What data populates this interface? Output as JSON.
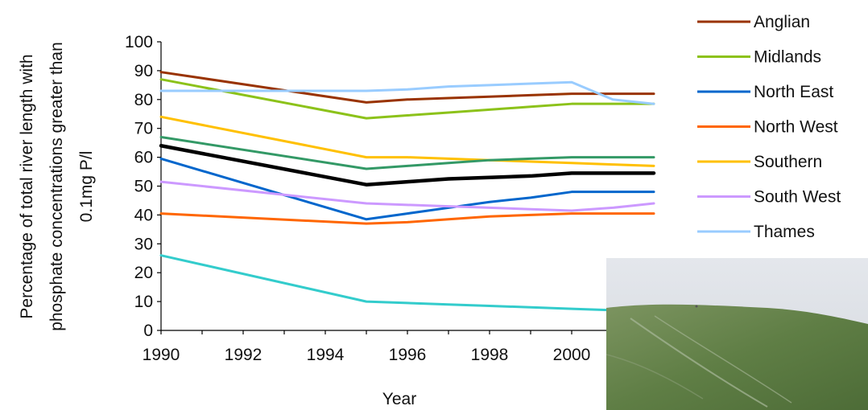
{
  "chart_data": {
    "type": "line",
    "xlabel": "Year",
    "ylabel": "Percentage of total river length with phosphate concentrations greater than 0.1mg P/l",
    "ylabel_lines": [
      "Percentage of total river length with",
      "phosphate concentrations greater than",
      "0.1mg P/l"
    ],
    "ylim": [
      0,
      100
    ],
    "xlim": [
      1990,
      2002
    ],
    "y_ticks": [
      "0",
      "10",
      "20",
      "30",
      "40",
      "50",
      "60",
      "70",
      "80",
      "90",
      "100"
    ],
    "x_ticks": [
      "1990",
      "1992",
      "1994",
      "1996",
      "1998",
      "2000"
    ],
    "x": [
      1990,
      1995,
      1996,
      1997,
      1998,
      1999,
      2000,
      2001,
      2002
    ],
    "series": [
      {
        "name": "Anglian",
        "color": "#993300",
        "values": [
          89.5,
          79,
          80,
          80.5,
          81,
          81.5,
          82,
          82,
          82
        ]
      },
      {
        "name": "Midlands",
        "color": "#8CC21A",
        "values": [
          87,
          73.5,
          74.5,
          75.5,
          76.5,
          77.5,
          78.5,
          78.5,
          78.5
        ]
      },
      {
        "name": "North East",
        "color": "#0066CC",
        "values": [
          59.5,
          38.5,
          40.5,
          42.5,
          44.5,
          46,
          48,
          48,
          48
        ]
      },
      {
        "name": "North West",
        "color": "#FF6600",
        "values": [
          40.5,
          37,
          37.5,
          38.5,
          39.5,
          40,
          40.5,
          40.5,
          40.5
        ]
      },
      {
        "name": "Southern",
        "color": "#FFC000",
        "values": [
          74,
          60,
          60,
          59.5,
          59,
          58.5,
          58,
          57.5,
          57
        ]
      },
      {
        "name": "South West",
        "color": "#CC99FF",
        "values": [
          51.5,
          44,
          43.5,
          43,
          42.5,
          42,
          41.5,
          42.5,
          44
        ]
      },
      {
        "name": "Thames",
        "color": "#99CCFF",
        "values": [
          83,
          83,
          83.5,
          84.5,
          85,
          85.5,
          86,
          80,
          78.5
        ]
      },
      {
        "name": "",
        "color": "#339966",
        "values": [
          67,
          56,
          57,
          58,
          59,
          59.5,
          60,
          60,
          60
        ]
      },
      {
        "name": "",
        "color": "#000000",
        "values": [
          64,
          50.5,
          51.5,
          52.5,
          53,
          53.5,
          54.5,
          54.5,
          54.5
        ]
      },
      {
        "name": "",
        "color": "#33CCCC",
        "values": [
          26,
          10,
          9.5,
          9,
          8.5,
          8,
          7.5,
          7,
          7
        ]
      }
    ],
    "legend_placement": "right",
    "grid": false
  },
  "photo": {
    "sky": "#dcdfe4",
    "field": "#5e7d44"
  }
}
